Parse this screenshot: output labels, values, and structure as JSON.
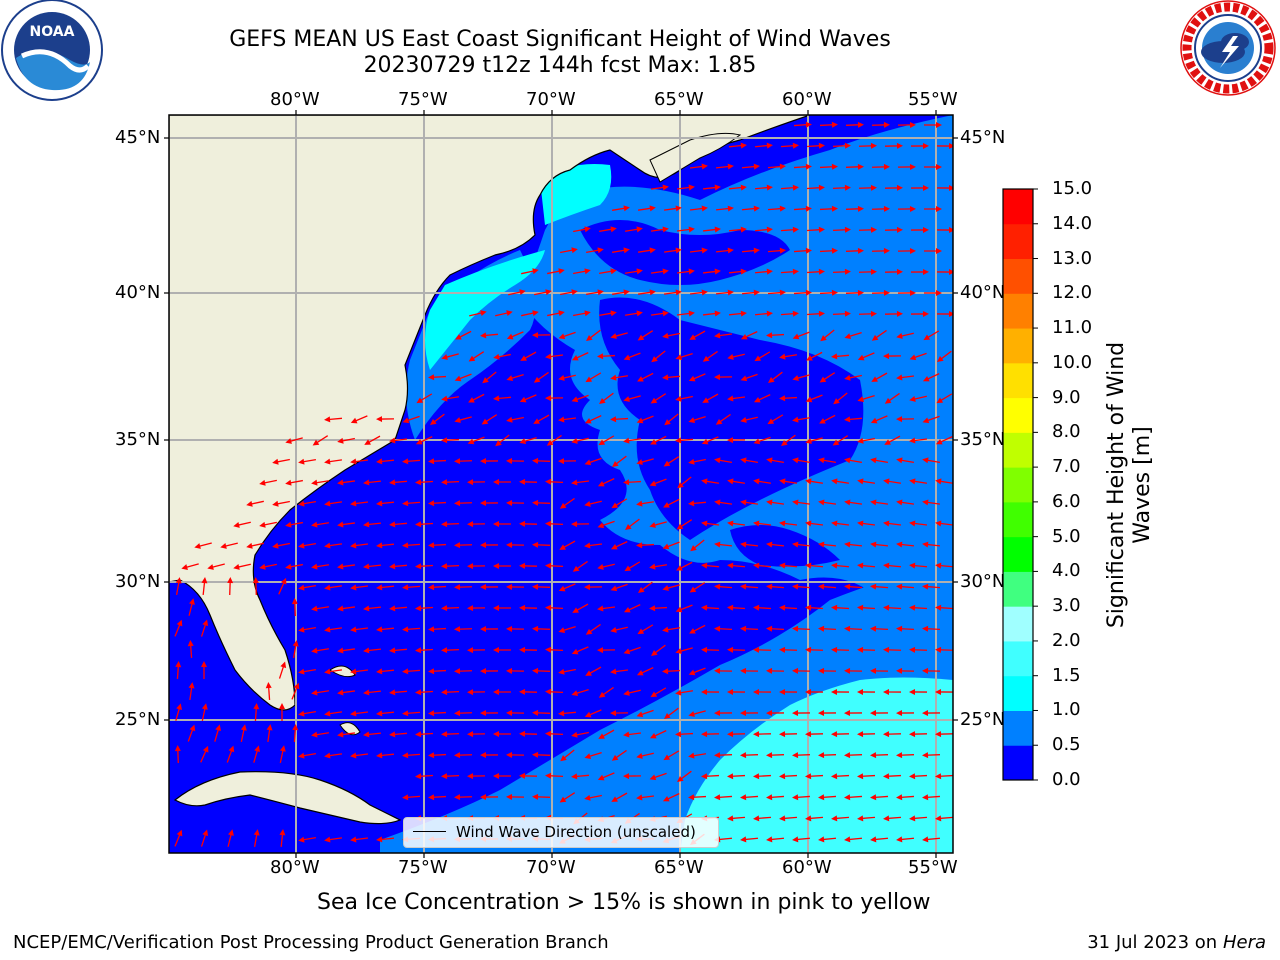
{
  "header": {
    "title_line1": "GEFS MEAN US East Coast Significant Height of Wind Waves",
    "title_line2": "20230729 t12z 144h fcst   Max: 1.85"
  },
  "logos": {
    "left": {
      "name": "NOAA",
      "ring_text": "NATIONAL OCEANIC AND ATMOSPHERIC ADMINISTRATION · U.S. DEPARTMENT OF COMMERCE"
    },
    "right": {
      "name": "NATIONAL WEATHER SERVICE"
    }
  },
  "map": {
    "longitude_labels": [
      "80°W",
      "75°W",
      "70°W",
      "65°W",
      "60°W",
      "55°W"
    ],
    "latitude_labels": [
      "45°N",
      "40°N",
      "35°N",
      "30°N",
      "25°N"
    ],
    "legend": "Wind Wave Direction (unscaled)",
    "note": "Sea Ice Concentration > 15% is shown in pink to yellow",
    "colors": {
      "land": "#efefdc",
      "coast": "#000000",
      "arrows": "#ff0000",
      "grid": "#b0b0b0"
    }
  },
  "colorbar": {
    "label": "Significant Height of Wind Waves [m]",
    "ticks": [
      "15.0",
      "14.0",
      "13.0",
      "12.0",
      "11.0",
      "10.0",
      "9.0",
      "8.0",
      "7.0",
      "6.0",
      "5.0",
      "4.0",
      "3.0",
      "2.0",
      "1.5",
      "1.0",
      "0.5",
      "0.0"
    ],
    "colors_bottom_to_top": [
      "#0000ff",
      "#0080ff",
      "#00ffff",
      "#40ffff",
      "#a0ffff",
      "#40ff80",
      "#00ff00",
      "#40ff00",
      "#80ff00",
      "#c0ff00",
      "#ffff00",
      "#ffe000",
      "#ffb000",
      "#ff8000",
      "#ff5000",
      "#ff2000",
      "#ff0000"
    ]
  },
  "footer": {
    "left": "NCEP/EMC/Verification Post Processing Product Generation Branch",
    "right_date": "31 Jul 2023 on",
    "right_host": "Hera"
  }
}
